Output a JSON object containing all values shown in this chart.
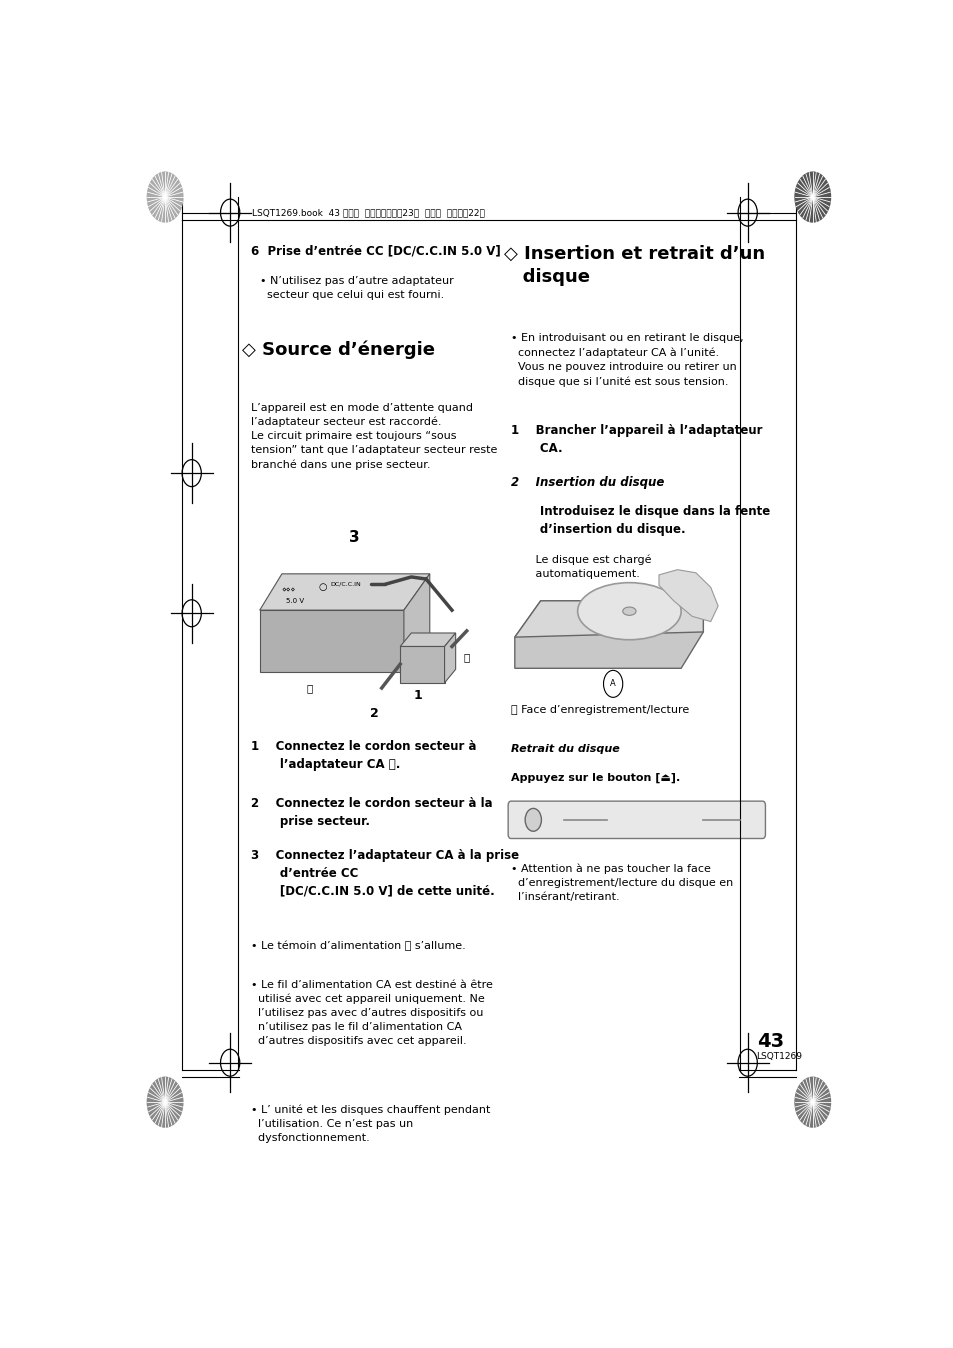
{
  "page_bg": "#ffffff",
  "page_number": "43",
  "page_code": "LSQT1269",
  "header_line_text": "LSQT1269.book  43 ページ  ２００７年７月23日  月曜日  午後４時22分",
  "section6_title": "6  Prise d’entrée CC [DC/C.C.IN 5.0 V]",
  "section6_bullet": "• N’utilisez pas d’autre adaptateur\n  secteur que celui qui est fourni.",
  "source_title": "◇ Source d’énergie",
  "source_body": "L’appareil est en mode d’attente quand\nl’adaptateur secteur est raccordé.\nLe circuit primaire est toujours “sous\ntension” tant que l’adaptateur secteur reste\nbranché dans une prise secteur.",
  "step1_left": "1    Connectez le cordon secteur à\n       l’adaptateur CA Ⓐ.",
  "step2_left": "2    Connectez le cordon secteur à la\n       prise secteur.",
  "step3_left": "3    Connectez l’adaptateur CA à la prise\n       d’entrée CC\n       [DC/C.C.IN 5.0 V] de cette unité.",
  "bullet1_left": "• Le témoin d’alimentation Ⓑ s’allume.",
  "bullet2_left": "• Le fil d’alimentation CA est destiné à être\n  utilisé avec cet appareil uniquement. Ne\n  l’utilisez pas avec d’autres dispositifs ou\n  n’utilisez pas le fil d’alimentation CA\n  d’autres dispositifs avec cet appareil.",
  "bullet3_left": "• L’ unité et les disques chauffent pendant\n  l’utilisation. Ce n’est pas un\n  dysfonctionnement.",
  "insert_title": "◇ Insertion et retrait d’un\n  disque",
  "insert_bullet": "• En introduisant ou en retirant le disque,\n  connectez l’adaptateur CA à l’unité.\n  Vous ne pouvez introduire ou retirer un\n  disque que si l’unité est sous tension.",
  "step1_right": "1    Brancher l’appareil à l’adaptateur\n       CA.",
  "step2a_right": "2    Insertion du disque",
  "step2b_right": "       Introduisez le disque dans la fente\n       d’insertion du disque.",
  "step2c_right": "       Le disque est chargé\n       automatiquement.",
  "face_label": "Ⓐ Face d’enregistrement/lecture",
  "retrait_title": "Retrait du disque",
  "retrait_body": "Appuyez sur le bouton [⏏].",
  "bullet_right": "• Attention à ne pas toucher la face\n  d’enregistrement/lecture du disque en\n  l’insérant/retirant."
}
